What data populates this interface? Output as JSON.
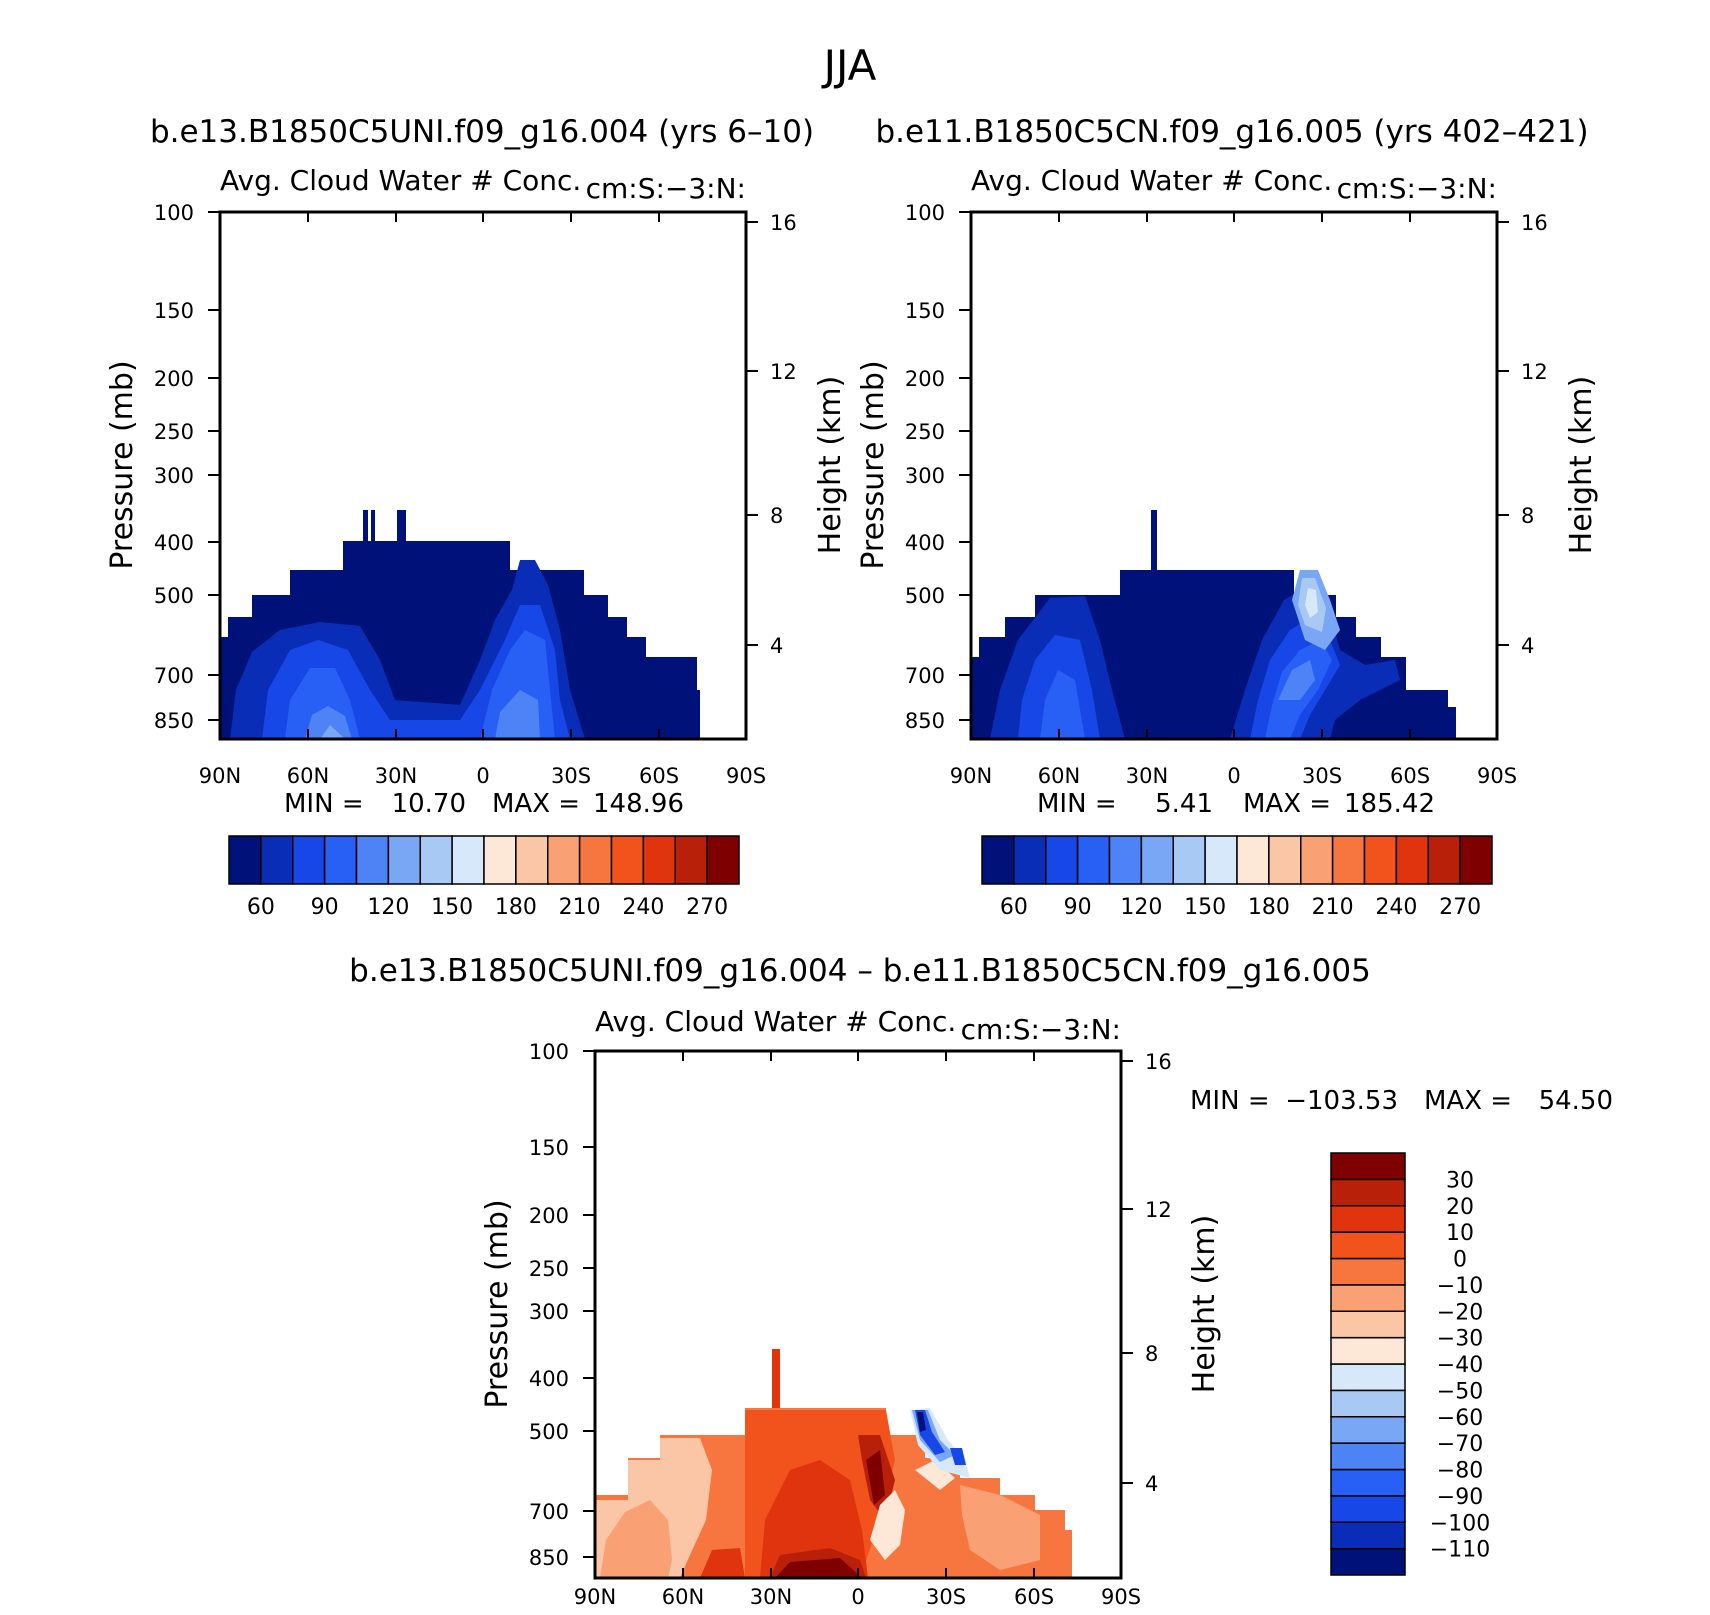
{
  "page_title": "JJA",
  "colors": {
    "abs": [
      "#00127a",
      "#0a2db8",
      "#1747e6",
      "#285ff5",
      "#4d83f5",
      "#7aa7f5",
      "#a9c9f5",
      "#d6e8fa",
      "#fde7d6",
      "#fbc6a6",
      "#f9a075",
      "#f7763f",
      "#f2531c",
      "#e0340f",
      "#b8200a",
      "#7f0000"
    ],
    "diff": [
      "#00127a",
      "#0a2db8",
      "#1747e6",
      "#285ff5",
      "#4d83f5",
      "#7aa7f5",
      "#a9c9f5",
      "#d6e8fa",
      "#fde7d6",
      "#fbc6a6",
      "#f9a075",
      "#f7763f",
      "#f2531c",
      "#e0340f",
      "#b8200a",
      "#7f0000"
    ]
  },
  "chart_data": [
    {
      "type": "contour",
      "case_title": "b.e13.B1850C5UNI.f09_g16.004 (yrs 6–10)",
      "left_string": "Avg. Cloud Water # Conc.",
      "right_string": "cm:S:−3:N:",
      "ylabel": "Pressure (mb)",
      "ylabel_right": "Height (km)",
      "xticks": [
        "90N",
        "60N",
        "30N",
        "0",
        "30S",
        "60S",
        "90S"
      ],
      "yticks": [
        "100",
        "150",
        "200",
        "250",
        "300",
        "400",
        "500",
        "700",
        "850"
      ],
      "yticks_right": [
        "16",
        "12",
        "8",
        "4"
      ],
      "min_label": "MIN =",
      "min_value": "10.70",
      "max_label": "MAX =",
      "max_value": "148.96",
      "colorbar_labels": [
        "60",
        "90",
        "120",
        "150",
        "180",
        "210",
        "240",
        "270"
      ]
    },
    {
      "type": "contour",
      "case_title": "b.e11.B1850C5CN.f09_g16.005 (yrs 402–421)",
      "left_string": "Avg. Cloud Water # Conc.",
      "right_string": "cm:S:−3:N:",
      "ylabel": "Pressure (mb)",
      "ylabel_right": "Height (km)",
      "xticks": [
        "90N",
        "60N",
        "30N",
        "0",
        "30S",
        "60S",
        "90S"
      ],
      "yticks": [
        "100",
        "150",
        "200",
        "250",
        "300",
        "400",
        "500",
        "700",
        "850"
      ],
      "yticks_right": [
        "16",
        "12",
        "8",
        "4"
      ],
      "min_label": "MIN =",
      "min_value": "5.41",
      "max_label": "MAX =",
      "max_value": "185.42",
      "colorbar_labels": [
        "60",
        "90",
        "120",
        "150",
        "180",
        "210",
        "240",
        "270"
      ]
    },
    {
      "type": "contour",
      "case_title": "b.e13.B1850C5UNI.f09_g16.004 – b.e11.B1850C5CN.f09_g16.005",
      "left_string": "Avg. Cloud Water # Conc.",
      "right_string": "cm:S:−3:N:",
      "ylabel": "Pressure (mb)",
      "ylabel_right": "Height (km)",
      "xticks": [
        "90N",
        "60N",
        "30N",
        "0",
        "30S",
        "60S",
        "90S"
      ],
      "yticks": [
        "100",
        "150",
        "200",
        "250",
        "300",
        "400",
        "500",
        "700",
        "850"
      ],
      "yticks_right": [
        "16",
        "12",
        "8",
        "4"
      ],
      "min_label": "MIN =",
      "min_value": "−103.53",
      "max_label": "MAX =",
      "max_value": "54.50",
      "colorbar_labels": [
        "30",
        "20",
        "10",
        "0",
        "−10",
        "−20",
        "−30",
        "−40",
        "−50",
        "−60",
        "−70",
        "−80",
        "−90",
        "−100",
        "−110"
      ]
    }
  ]
}
